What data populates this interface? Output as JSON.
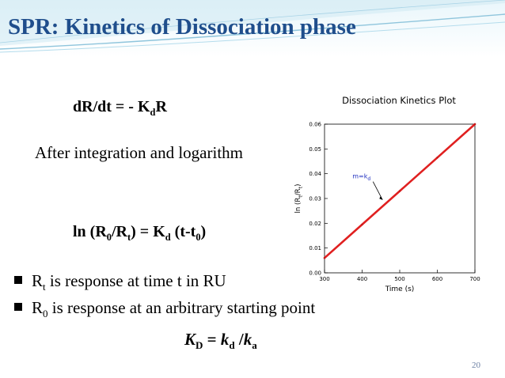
{
  "slide": {
    "title": "SPR: Kinetics of Dissociation phase",
    "page_number": "20",
    "colors": {
      "title": "#1f4e8c",
      "banner": "#b9dcea",
      "line": "#e02020"
    }
  },
  "equations": {
    "rate": {
      "lhs": "dR/dt  =  - K",
      "sub": "d",
      "rhs": "R"
    },
    "integration_text": "After integration and logarithm",
    "log": {
      "p1": "ln (R",
      "s1": "0",
      "p2": "/R",
      "s2": "t",
      "p3": ") = K",
      "s3": "d",
      "p4": " (t-t",
      "s4": "0",
      "p5": ")"
    },
    "kd": {
      "K": "K",
      "Ksub": "D",
      "eq": " = ",
      "k1": "k",
      "k1sub": "d",
      "slash": " /",
      "k2": "k",
      "k2sub": "a"
    }
  },
  "bullets": [
    {
      "pre": "R",
      "sub": "t",
      "post": " is response at time t in RU"
    },
    {
      "pre": "R",
      "sub": "0",
      "post": " is response at an arbitrary starting point"
    }
  ],
  "chart_data": {
    "type": "line",
    "title": "Dissociation Kinetics Plot",
    "xlabel": "Time (s)",
    "ylabel": {
      "main": "ln (R",
      "s1": "t",
      "mid": "/R",
      "s2": "t",
      "end": ")"
    },
    "xlim": [
      300,
      700
    ],
    "ylim": [
      0.0,
      0.06
    ],
    "xticks": [
      "300",
      "400",
      "500",
      "600",
      "700"
    ],
    "yticks": [
      "0.00",
      "0.01",
      "0.02",
      "0.03",
      "0.04",
      "0.05",
      "0.06"
    ],
    "series": [
      {
        "x": [
          300,
          400,
          500,
          600,
          700
        ],
        "y": [
          0.006,
          0.0195,
          0.033,
          0.0465,
          0.06
        ]
      }
    ],
    "annotation": {
      "text": "m=k",
      "sub": "d",
      "at": [
        450,
        0.0285
      ]
    },
    "grid": false
  }
}
